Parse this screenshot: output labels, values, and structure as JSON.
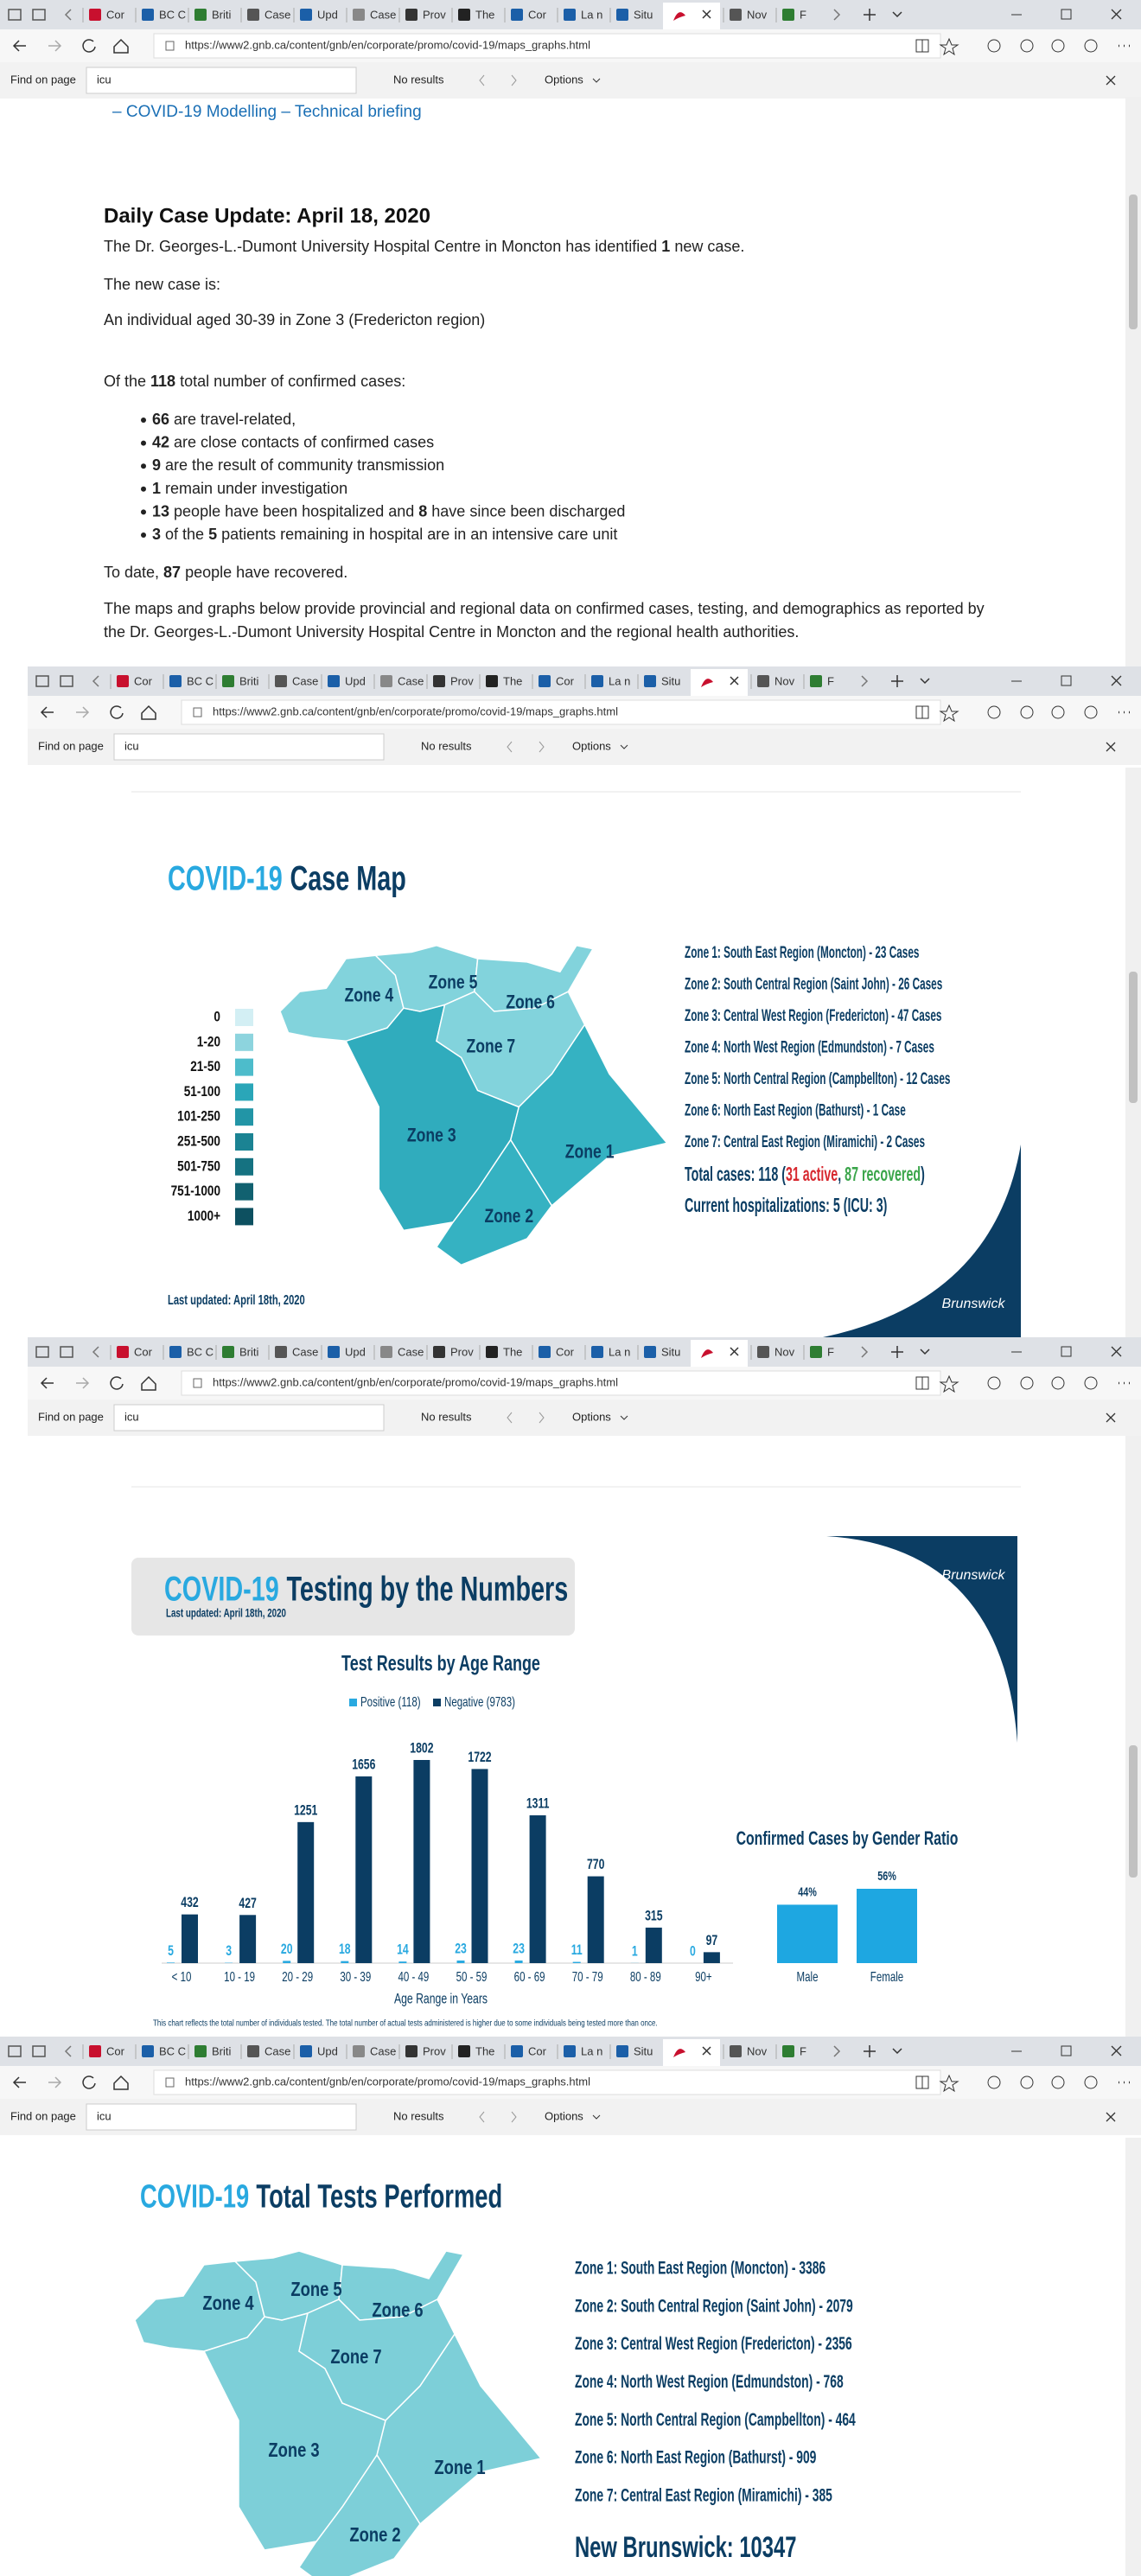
{
  "browser": {
    "tabs": [
      "Cor",
      "BC C",
      "Briti",
      "Case",
      "Upd",
      "Case",
      "Prov",
      "The",
      "Cor",
      "La n",
      "Situ",
      "Nov",
      "F"
    ],
    "url": "https://www2.gnb.ca/content/gnb/en/corporate/promo/covid-19/maps_graphs.html",
    "find_label": "Find on page",
    "find_query": "icu",
    "find_status": "No results",
    "find_options": "Options"
  },
  "article": {
    "link": "– COVID-19 Modelling – Technical briefing",
    "heading": "Daily Case Update: April 18, 2020",
    "p1": [
      "The Dr. Georges-L.-Dumont University Hospital Centre in Moncton has identified ",
      "1",
      " new case."
    ],
    "p2": "The new case is:",
    "p3": "An individual aged 30-39 in Zone 3 (Fredericton region)",
    "p4": [
      "Of the ",
      "118",
      " total number of confirmed cases:"
    ],
    "bullets": [
      [
        "66",
        " are travel-related,"
      ],
      [
        "42",
        " are close contacts of confirmed cases"
      ],
      [
        "9",
        " are the result of community transmission"
      ],
      [
        "1",
        " remain under investigation"
      ],
      [
        "13",
        " people have been hospitalized and ",
        "8",
        " have since been discharged"
      ],
      [
        "3",
        " of the ",
        "5",
        " patients remaining in hospital are in an intensive care unit"
      ]
    ],
    "p5": [
      "To date, ",
      "87",
      " people have recovered."
    ],
    "p6": [
      "The maps and graphs below provide provincial and regional data on confirmed cases, testing, and demographics as reported by",
      "the Dr. Georges-L.-Dumont University Hospital Centre in Moncton and the regional health authorities."
    ]
  },
  "case_map": {
    "title_a": "COVID-19",
    "title_b": "Case Map",
    "legend": [
      "0",
      "1-20",
      "21-50",
      "51-100",
      "101-250",
      "251-500",
      "501-750",
      "751-1000",
      "1000+"
    ],
    "zones": [
      "Zone 1: South East Region (Moncton) - 23 Cases",
      "Zone 2: South Central Region (Saint John) - 26 Cases",
      "Zone 3: Central West Region (Fredericton) - 47 Cases",
      "Zone 4: North West Region (Edmundston) - 7 Cases",
      "Zone 5: North Central Region (Campbellton) - 12 Cases",
      "Zone 6: North East Region (Bathurst) - 1 Case",
      "Zone 7: Central East Region (Miramichi) - 2 Cases"
    ],
    "total": [
      "Total cases: 118 (",
      "31 active",
      ", ",
      "87 recovered",
      ")"
    ],
    "hosp": "Current hospitalizations: 5 (ICU: 3)",
    "updated": "Last updated: April 18th, 2020",
    "logo": "Brunswick",
    "zone_labels": [
      "Zone 1",
      "Zone 2",
      "Zone 3",
      "Zone 4",
      "Zone 5",
      "Zone 6",
      "Zone 7"
    ]
  },
  "testing": {
    "title_a": "COVID-19",
    "title_b": "Testing by the Numbers",
    "updated": "Last updated: April 18th, 2020",
    "logo": "Brunswick",
    "age_title": "Test Results by Age Range",
    "categories": [
      "< 10",
      "10 - 19",
      "20 - 29",
      "30 - 39",
      "40 - 49",
      "50 - 59",
      "60 - 69",
      "70 - 79",
      "80 - 89",
      "90+"
    ],
    "series": [
      {
        "name": "Positive (118)",
        "color": "#29a9e0",
        "values": [
          5,
          3,
          20,
          18,
          14,
          23,
          23,
          11,
          1,
          0
        ]
      },
      {
        "name": "Negative (9783)",
        "color": "#0b3d63",
        "values": [
          432,
          427,
          1251,
          1656,
          1802,
          1722,
          1311,
          770,
          315,
          97
        ]
      }
    ],
    "x_label": "Age Range in Years",
    "footnote": "This chart reflects the total number of individuals tested. The total number of actual tests administered is higher due to some individuals being tested more than once.",
    "gender_title": "Confirmed Cases by Gender Ratio",
    "gender": {
      "categories": [
        "Male",
        "Female"
      ],
      "values": [
        44,
        56
      ],
      "value_labels": [
        "44%",
        "56%"
      ],
      "color": "#1ea7e1"
    }
  },
  "total_tests": {
    "title_a": "COVID-19",
    "title_b": "Total Tests Performed",
    "zones": [
      "Zone 1: South East Region (Moncton) - 3386",
      "Zone 2: South Central Region (Saint John) - 2079",
      "Zone 3: Central West Region (Fredericton) - 2356",
      "Zone 4: North West Region (Edmundston) - 768",
      "Zone 5: North Central Region (Campbellton) - 464",
      "Zone 6: North East Region (Bathurst) - 909",
      "Zone 7: Central East Region (Miramichi) - 385"
    ],
    "total": "New Brunswick: 10347",
    "zone_labels": [
      "Zone 1",
      "Zone 2",
      "Zone 3",
      "Zone 4",
      "Zone 5",
      "Zone 6",
      "Zone 7"
    ]
  }
}
